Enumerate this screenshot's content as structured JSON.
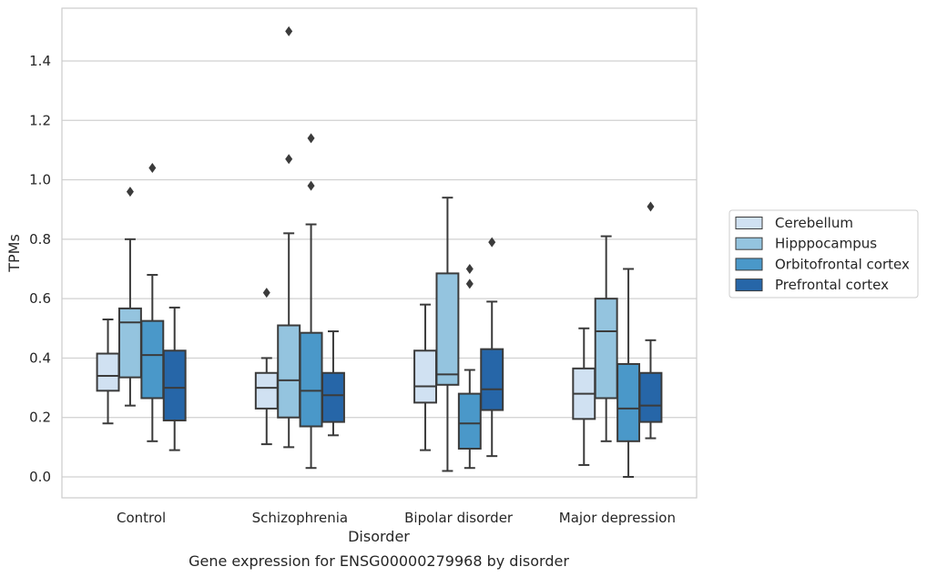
{
  "chart_data": {
    "type": "box",
    "title": "",
    "caption": "Gene expression for ENSG00000279968 by disorder",
    "xlabel": "Disorder",
    "ylabel": "TPMs",
    "ylim": [
      -0.07,
      1.58
    ],
    "yticks": [
      0.0,
      0.2,
      0.4,
      0.6,
      0.8,
      1.0,
      1.2,
      1.4
    ],
    "ytick_labels": [
      "0.0",
      "0.2",
      "0.4",
      "0.6",
      "0.8",
      "1.0",
      "1.2",
      "1.4"
    ],
    "categories": [
      "Control",
      "Schizophrenia",
      "Bipolar disorder",
      "Major depression"
    ],
    "grid": "horizontal",
    "legend_position": "right",
    "series": [
      {
        "name": "Cerebellum",
        "color": "#d0e1f2",
        "boxes": [
          {
            "whisker_low": 0.18,
            "q1": 0.29,
            "median": 0.34,
            "q3": 0.415,
            "whisker_high": 0.53,
            "outliers": []
          },
          {
            "whisker_low": 0.11,
            "q1": 0.23,
            "median": 0.3,
            "q3": 0.35,
            "whisker_high": 0.4,
            "outliers": [
              0.62
            ]
          },
          {
            "whisker_low": 0.09,
            "q1": 0.25,
            "median": 0.305,
            "q3": 0.425,
            "whisker_high": 0.58,
            "outliers": []
          },
          {
            "whisker_low": 0.04,
            "q1": 0.195,
            "median": 0.28,
            "q3": 0.365,
            "whisker_high": 0.5,
            "outliers": []
          }
        ]
      },
      {
        "name": "Hipppocampus",
        "color": "#94c4df",
        "boxes": [
          {
            "whisker_low": 0.24,
            "q1": 0.335,
            "median": 0.52,
            "q3": 0.567,
            "whisker_high": 0.8,
            "outliers": [
              0.96
            ]
          },
          {
            "whisker_low": 0.1,
            "q1": 0.2,
            "median": 0.325,
            "q3": 0.51,
            "whisker_high": 0.82,
            "outliers": [
              1.07,
              1.5
            ]
          },
          {
            "whisker_low": 0.02,
            "q1": 0.31,
            "median": 0.345,
            "q3": 0.685,
            "whisker_high": 0.94,
            "outliers": []
          },
          {
            "whisker_low": 0.12,
            "q1": 0.265,
            "median": 0.49,
            "q3": 0.6,
            "whisker_high": 0.81,
            "outliers": []
          }
        ]
      },
      {
        "name": "Orbitofrontal cortex",
        "color": "#4a98c9",
        "boxes": [
          {
            "whisker_low": 0.12,
            "q1": 0.265,
            "median": 0.41,
            "q3": 0.525,
            "whisker_high": 0.68,
            "outliers": [
              1.04
            ]
          },
          {
            "whisker_low": 0.03,
            "q1": 0.17,
            "median": 0.29,
            "q3": 0.485,
            "whisker_high": 0.85,
            "outliers": [
              0.98,
              1.14
            ]
          },
          {
            "whisker_low": 0.03,
            "q1": 0.095,
            "median": 0.18,
            "q3": 0.28,
            "whisker_high": 0.36,
            "outliers": [
              0.65,
              0.7
            ]
          },
          {
            "whisker_low": 0.0,
            "q1": 0.12,
            "median": 0.23,
            "q3": 0.38,
            "whisker_high": 0.7,
            "outliers": []
          }
        ]
      },
      {
        "name": "Prefrontal cortex",
        "color": "#2666a8",
        "boxes": [
          {
            "whisker_low": 0.09,
            "q1": 0.19,
            "median": 0.3,
            "q3": 0.425,
            "whisker_high": 0.57,
            "outliers": []
          },
          {
            "whisker_low": 0.14,
            "q1": 0.185,
            "median": 0.275,
            "q3": 0.35,
            "whisker_high": 0.49,
            "outliers": []
          },
          {
            "whisker_low": 0.07,
            "q1": 0.225,
            "median": 0.295,
            "q3": 0.43,
            "whisker_high": 0.59,
            "outliers": [
              0.79
            ]
          },
          {
            "whisker_low": 0.13,
            "q1": 0.185,
            "median": 0.24,
            "q3": 0.35,
            "whisker_high": 0.46,
            "outliers": [
              0.91
            ]
          }
        ]
      }
    ]
  }
}
